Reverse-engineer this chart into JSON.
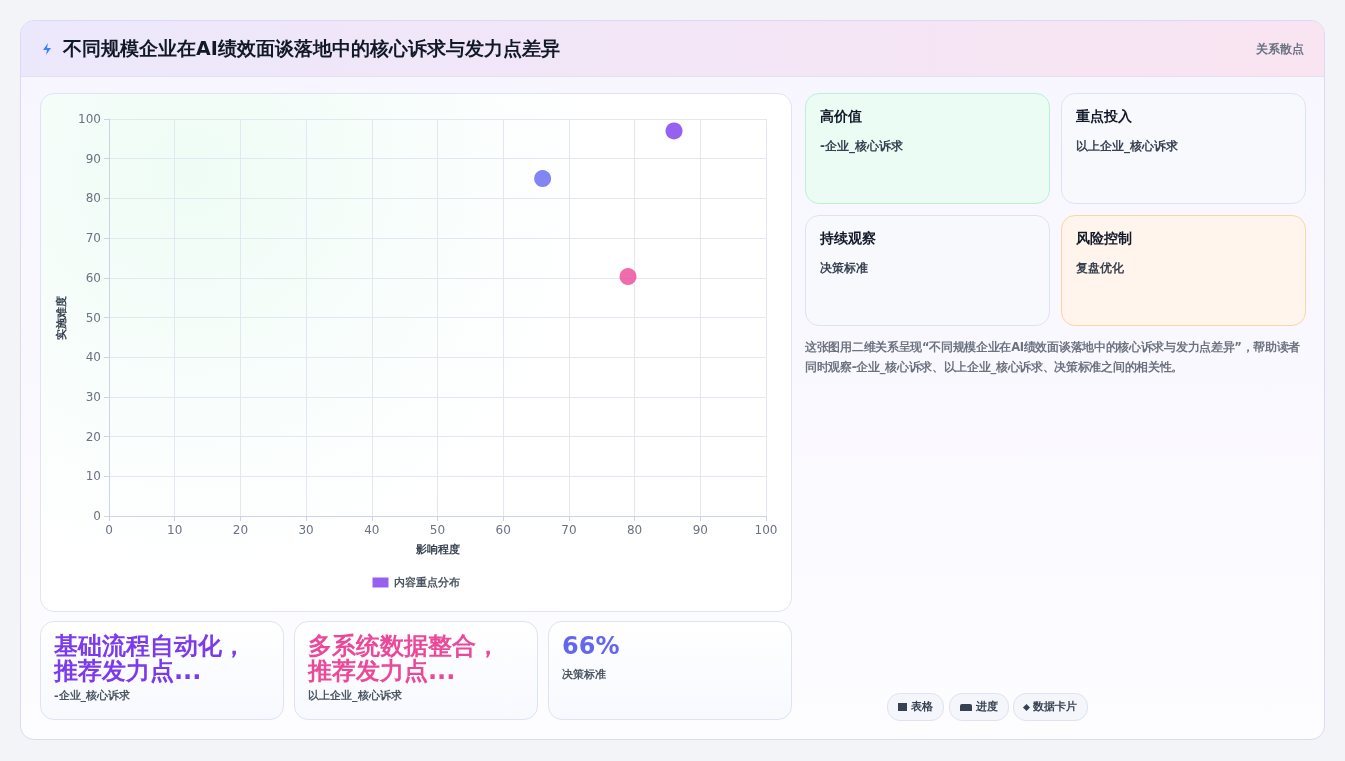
{
  "chart_data": [
    {
      "type": "scatter",
      "title": "不同规模企业在AI绩效面谈落地中的核心诉求与发力点差异",
      "xlabel": "影响程度",
      "ylabel": "实施难度",
      "xlim": [
        0,
        100
      ],
      "ylim": [
        0,
        100
      ],
      "xticks": [
        0,
        10,
        20,
        30,
        40,
        50,
        60,
        70,
        80,
        90,
        100
      ],
      "yticks": [
        0,
        10,
        20,
        30,
        40,
        50,
        60,
        70,
        80,
        90,
        100
      ],
      "grid": true,
      "legend": "bottom",
      "marker": "circle",
      "series": [
        {
          "name": "内容重点分布",
          "color": "#7c3aed",
          "x": [
            66,
            79,
            86
          ],
          "values": [
            85,
            60.3,
            97
          ],
          "colors": [
            "#6366f1",
            "#ec4899",
            "#7c3aed"
          ]
        }
      ]
    },
    {
      "type": "other",
      "annotations": [
        "高价值",
        "-企业_核心诉求",
        "重点投入",
        "以上企业_核心诉求",
        "持续观察",
        "决策标准",
        "风险控制",
        "复盘优化",
        "这张图用二维关系呈现“不同规模企业在AI绩效面谈落地中的核心诉求与发力点差异”，帮助读者同时观察-企业_核心诉求、以上企业_核心诉求、决策标准之间的相关性。",
        "基础流程自动化，推荐发力点...",
        "-企业_核心诉求",
        "多系统数据整合，推荐发力点...",
        "以上企业_核心诉求",
        "66%",
        "决策标准",
        "表格",
        "进度",
        "数据卡片",
        "关系散点"
      ]
    }
  ]
}
